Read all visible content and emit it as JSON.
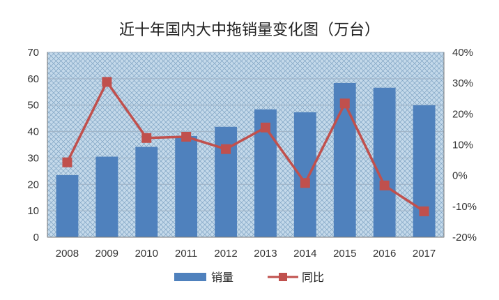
{
  "chart_data": {
    "type": "bar+line",
    "title": "近十年国内大中拖销量变化图（万台）",
    "categories": [
      "2008",
      "2009",
      "2010",
      "2011",
      "2012",
      "2013",
      "2014",
      "2015",
      "2016",
      "2017"
    ],
    "series": [
      {
        "name": "销量",
        "type": "bar",
        "axis": "left",
        "color": "#4f81bd",
        "values": [
          23.5,
          30.5,
          34.2,
          38.3,
          41.8,
          48.4,
          47.3,
          58.4,
          56.6,
          50.0
        ]
      },
      {
        "name": "同比",
        "type": "line",
        "axis": "right",
        "color": "#c0504d",
        "unit": "%",
        "values": [
          4.3,
          30.4,
          12.2,
          12.6,
          8.6,
          15.6,
          -2.4,
          23.4,
          -3.2,
          -11.6
        ]
      }
    ],
    "y_left": {
      "min": 0,
      "max": 70,
      "step": 10,
      "ticks": [
        "0",
        "10",
        "20",
        "30",
        "40",
        "50",
        "60",
        "70"
      ]
    },
    "y_right": {
      "min": -20,
      "max": 40,
      "step": 10,
      "ticks": [
        "-20%",
        "-10%",
        "0%",
        "10%",
        "20%",
        "30%",
        "40%"
      ]
    },
    "grid": true,
    "legend_position": "bottom",
    "plot_background": "crosshatch"
  }
}
